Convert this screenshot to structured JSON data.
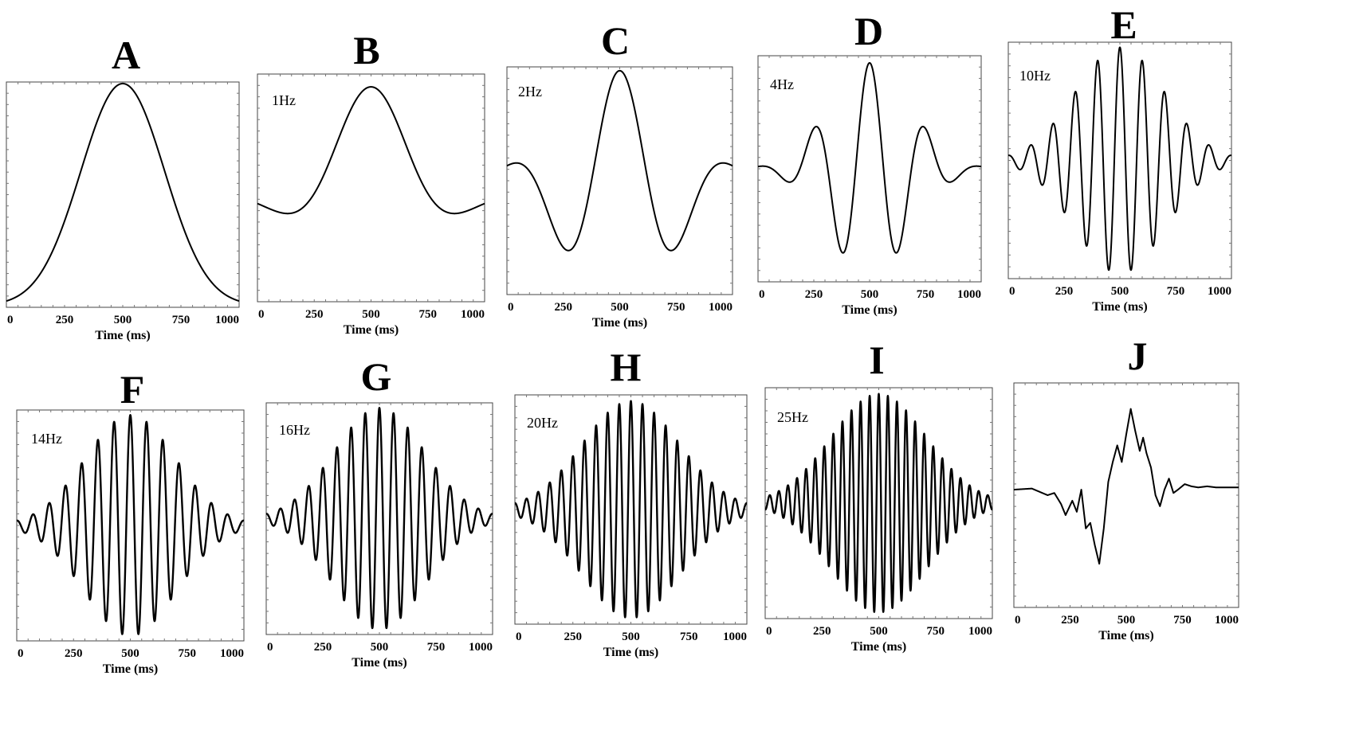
{
  "chart_data": [
    {
      "panel": "A",
      "type": "line",
      "frequency_label": "",
      "xlabel": "Time (ms)",
      "xticks": [
        "0",
        "250",
        "500",
        "750",
        "1000"
      ],
      "xlim": [
        0,
        1000
      ],
      "ylim": [
        -1,
        1
      ],
      "waveform": {
        "shape": "gaussian",
        "center_ms": 500,
        "width_ms": 180,
        "amplitude": 1.0
      },
      "series": [
        {
          "x": [
            0,
            125,
            250,
            375,
            500,
            625,
            750,
            875,
            1000
          ],
          "y": [
            -0.96,
            -0.72,
            -0.24,
            0.55,
            1.0,
            0.55,
            -0.24,
            -0.72,
            -0.96
          ]
        }
      ]
    },
    {
      "panel": "B",
      "type": "line",
      "frequency_label": "1Hz",
      "xlabel": "Time (ms)",
      "xticks": [
        "0",
        "250",
        "500",
        "750",
        "1000"
      ],
      "xlim": [
        0,
        1000
      ],
      "ylim": [
        -1,
        1
      ],
      "waveform": {
        "shape": "gabor",
        "frequency_hz": 1,
        "center_ms": 500,
        "width_ms": 230,
        "amplitude": 0.95,
        "baseline": -0.05
      },
      "series": [
        {
          "x": [
            0,
            150,
            300,
            400,
            500,
            600,
            700,
            850,
            1000
          ],
          "y": [
            -0.08,
            -0.14,
            0.3,
            0.75,
            0.95,
            0.75,
            0.05,
            -0.12,
            -0.06
          ]
        }
      ]
    },
    {
      "panel": "C",
      "type": "line",
      "frequency_label": "2Hz",
      "xlabel": "Time (ms)",
      "xticks": [
        "0",
        "250",
        "500",
        "750",
        "1000"
      ],
      "xlim": [
        0,
        1000
      ],
      "ylim": [
        -1,
        1
      ],
      "waveform": {
        "shape": "gabor",
        "frequency_hz": 2,
        "center_ms": 500,
        "width_ms": 250,
        "amplitude": 0.98
      },
      "series": [
        {
          "x": [
            0,
            125,
            250,
            375,
            500,
            625,
            750,
            875,
            1000
          ],
          "y": [
            0.02,
            -0.1,
            -0.45,
            0.15,
            0.98,
            0.15,
            -0.45,
            -0.1,
            0.02
          ]
        }
      ]
    },
    {
      "panel": "D",
      "type": "line",
      "frequency_label": "4Hz",
      "xlabel": "Time (ms)",
      "xticks": [
        "0",
        "250",
        "500",
        "750",
        "1000"
      ],
      "xlim": [
        0,
        1000
      ],
      "ylim": [
        -1,
        1
      ],
      "waveform": {
        "shape": "gabor",
        "frequency_hz": 4,
        "center_ms": 500,
        "width_ms": 180,
        "amplitude": 0.95
      },
      "series": [
        {
          "x": [
            0,
            250,
            375,
            500,
            625,
            750,
            1000
          ],
          "y": [
            0.0,
            0.4,
            -0.8,
            0.95,
            -0.8,
            0.4,
            0.0
          ]
        }
      ]
    },
    {
      "panel": "E",
      "type": "line",
      "frequency_label": "10Hz",
      "xlabel": "Time (ms)",
      "xticks": [
        "0",
        "250",
        "500",
        "750",
        "1000"
      ],
      "xlim": [
        0,
        1000
      ],
      "ylim": [
        -1,
        1
      ],
      "waveform": {
        "shape": "gabor",
        "frequency_hz": 10,
        "center_ms": 500,
        "width_ms": 200,
        "amplitude": 0.97
      },
      "series": [
        {
          "x": [
            400,
            450,
            500,
            550,
            600
          ],
          "y": [
            0.78,
            -0.9,
            0.97,
            -0.9,
            0.78
          ]
        }
      ]
    },
    {
      "panel": "F",
      "type": "line",
      "frequency_label": "14Hz",
      "xlabel": "Time (ms)",
      "xticks": [
        "0",
        "250",
        "500",
        "750",
        "1000"
      ],
      "xlim": [
        0,
        1000
      ],
      "ylim": [
        -1,
        1
      ],
      "waveform": {
        "shape": "gabor",
        "frequency_hz": 14,
        "center_ms": 500,
        "width_ms": 200,
        "amplitude": 0.97
      },
      "series": [
        {
          "x": [
            464,
            500,
            536
          ],
          "y": [
            -0.92,
            0.97,
            -0.92
          ]
        }
      ]
    },
    {
      "panel": "G",
      "type": "line",
      "frequency_label": "16Hz",
      "xlabel": "Time (ms)",
      "xticks": [
        "0",
        "250",
        "500",
        "750",
        "1000"
      ],
      "xlim": [
        0,
        1000
      ],
      "ylim": [
        -1,
        1
      ],
      "waveform": {
        "shape": "gabor",
        "frequency_hz": 16,
        "center_ms": 500,
        "width_ms": 200,
        "amplitude": 0.97
      },
      "series": [
        {
          "x": [
            469,
            500,
            531
          ],
          "y": [
            -0.93,
            0.97,
            -0.93
          ]
        }
      ]
    },
    {
      "panel": "H",
      "type": "line",
      "frequency_label": "20Hz",
      "xlabel": "Time (ms)",
      "xticks": [
        "0",
        "250",
        "500",
        "750",
        "1000"
      ],
      "xlim": [
        0,
        1000
      ],
      "ylim": [
        -1,
        1
      ],
      "waveform": {
        "shape": "gabor",
        "frequency_hz": 20,
        "center_ms": 500,
        "width_ms": 210,
        "amplitude": 0.96
      },
      "series": [
        {
          "x": [
            475,
            500,
            525
          ],
          "y": [
            -0.95,
            0.96,
            -0.95
          ]
        }
      ]
    },
    {
      "panel": "I",
      "type": "line",
      "frequency_label": "25Hz",
      "xlabel": "Time (ms)",
      "xticks": [
        "0",
        "250",
        "500",
        "750",
        "1000"
      ],
      "xlim": [
        0,
        1000
      ],
      "ylim": [
        -1,
        1
      ],
      "waveform": {
        "shape": "gabor",
        "frequency_hz": 25,
        "center_ms": 500,
        "width_ms": 210,
        "amplitude": 0.96
      },
      "series": [
        {
          "x": [
            480,
            500,
            520
          ],
          "y": [
            -0.96,
            0.96,
            -0.96
          ]
        }
      ]
    },
    {
      "panel": "J",
      "type": "line",
      "frequency_label": "",
      "xlabel": "Time (ms)",
      "xticks": [
        "0",
        "250",
        "500",
        "750",
        "1000"
      ],
      "xlim": [
        0,
        1000
      ],
      "ylim": [
        -1,
        1
      ],
      "waveform": {
        "shape": "samples"
      },
      "series": [
        {
          "x": [
            0,
            80,
            150,
            180,
            210,
            230,
            260,
            280,
            300,
            320,
            340,
            360,
            380,
            400,
            420,
            440,
            460,
            480,
            500,
            520,
            540,
            560,
            575,
            590,
            610,
            630,
            650,
            670,
            690,
            710,
            730,
            760,
            790,
            820,
            860,
            900,
            950,
            1000
          ],
          "y": [
            0.05,
            0.06,
            0.0,
            0.02,
            -0.08,
            -0.18,
            -0.05,
            -0.15,
            0.05,
            -0.3,
            -0.25,
            -0.45,
            -0.62,
            -0.3,
            0.12,
            0.3,
            0.45,
            0.3,
            0.55,
            0.78,
            0.58,
            0.4,
            0.52,
            0.38,
            0.25,
            0.0,
            -0.1,
            0.05,
            0.15,
            0.02,
            0.05,
            0.1,
            0.08,
            0.07,
            0.08,
            0.07,
            0.07,
            0.07
          ]
        }
      ]
    }
  ]
}
